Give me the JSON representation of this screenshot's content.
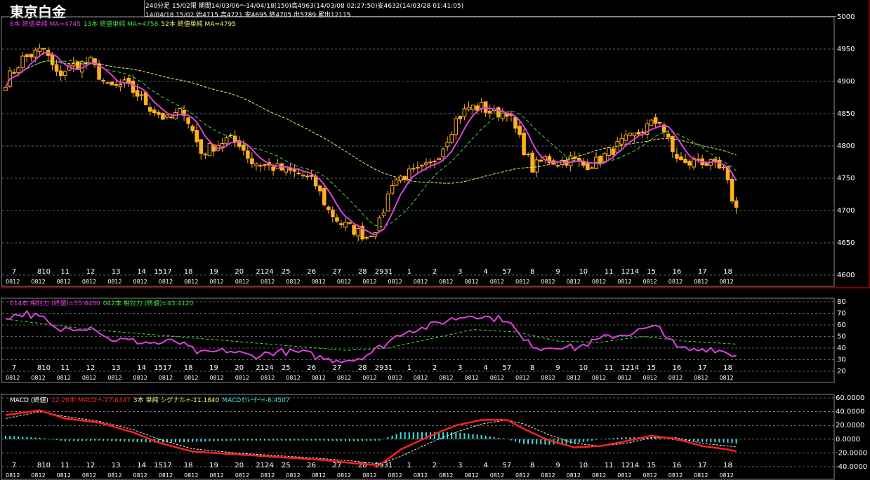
{
  "header": {
    "title": "東京白金",
    "info_line1": "240分足 15/02限 期間14/03/06～14/04/18(150)高4963(14/03/08 02:27:50)安4632(14/03/28 01:41:05)",
    "info_line2": "14/04/18 15/02 始4715 高4721 安4695 終4705 出5789 累出12115"
  },
  "colors": {
    "bg": "#000000",
    "candle": "#ffb020",
    "ma6": "#e040e0",
    "ma13": "#40e040",
    "ma52": "#f0f070",
    "rsi14": "#e040e0",
    "rsi42": "#40e040",
    "macd": "#ff2020",
    "signal": "#f0f0f0",
    "osc": "#40e0e0",
    "grid": "#c0c0c0",
    "red_border": "#ff0000"
  },
  "legends": {
    "price": [
      {
        "text": "6本 終値単純 MA=4745",
        "color": "#e040e0"
      },
      {
        "text": "13本 終値単純 MA=4758",
        "color": "#40e040"
      },
      {
        "text": "52本 終値単純 MA=4795",
        "color": "#f0f070"
      }
    ],
    "rsi": [
      {
        "text": "014本 相対力 (終値)=33.6480",
        "color": "#e040e0"
      },
      {
        "text": "042本 相対力 (終値)=43.4120",
        "color": "#40e040"
      }
    ],
    "macd": [
      {
        "text": "MACD (終値)",
        "color": "#ffffff"
      },
      {
        "text": "12-26本 MACD=-17.6347",
        "color": "#ff2020"
      },
      {
        "text": "3本 単純 シグナル=-11.1840",
        "color": "#f0f070"
      },
      {
        "text": "MACDｵｼﾚｰﾀｰ=-6.4507",
        "color": "#40e0e0"
      }
    ]
  },
  "date_labels": [
    {
      "text": "7",
      "i": 2
    },
    {
      "text": "810",
      "i": 9
    },
    {
      "text": "11",
      "i": 14
    },
    {
      "text": "12",
      "i": 20
    },
    {
      "text": "13",
      "i": 26
    },
    {
      "text": "14",
      "i": 32
    },
    {
      "text": "1517",
      "i": 37
    },
    {
      "text": "18",
      "i": 43
    },
    {
      "text": "19",
      "i": 49
    },
    {
      "text": "20",
      "i": 55
    },
    {
      "text": "2124",
      "i": 61
    },
    {
      "text": "25",
      "i": 66
    },
    {
      "text": "26",
      "i": 72
    },
    {
      "text": "27",
      "i": 78
    },
    {
      "text": "28",
      "i": 84
    },
    {
      "text": "2931",
      "i": 89
    },
    {
      "text": "1",
      "i": 95
    },
    {
      "text": "2",
      "i": 101
    },
    {
      "text": "3",
      "i": 107
    },
    {
      "text": "4",
      "i": 113
    },
    {
      "text": "57",
      "i": 118
    },
    {
      "text": "8",
      "i": 124
    },
    {
      "text": "9",
      "i": 130
    },
    {
      "text": "10",
      "i": 136
    },
    {
      "text": "11",
      "i": 142
    },
    {
      "text": "1214",
      "i": 147
    },
    {
      "text": "15",
      "i": 152
    },
    {
      "text": "16",
      "i": 158
    },
    {
      "text": "17",
      "i": 164
    },
    {
      "text": "18",
      "i": 170
    }
  ],
  "hour_tick_text": "0812",
  "chart_data": [
    {
      "type": "candlestick",
      "name": "price",
      "ylim": [
        4600,
        5000
      ],
      "yticks": [
        5000,
        4950,
        4900,
        4850,
        4800,
        4750,
        4700,
        4650,
        4600
      ],
      "bars": 173,
      "anchors": [
        [
          0,
          4900
        ],
        [
          4,
          4935
        ],
        [
          9,
          4950
        ],
        [
          12,
          4910
        ],
        [
          16,
          4925
        ],
        [
          20,
          4930
        ],
        [
          24,
          4890
        ],
        [
          28,
          4895
        ],
        [
          31,
          4880
        ],
        [
          34,
          4860
        ],
        [
          38,
          4840
        ],
        [
          42,
          4855
        ],
        [
          46,
          4790
        ],
        [
          49,
          4800
        ],
        [
          52,
          4810
        ],
        [
          55,
          4805
        ],
        [
          58,
          4775
        ],
        [
          61,
          4770
        ],
        [
          64,
          4765
        ],
        [
          67,
          4760
        ],
        [
          70,
          4755
        ],
        [
          73,
          4740
        ],
        [
          76,
          4700
        ],
        [
          79,
          4680
        ],
        [
          82,
          4670
        ],
        [
          85,
          4660
        ],
        [
          88,
          4680
        ],
        [
          91,
          4745
        ],
        [
          94,
          4755
        ],
        [
          97,
          4760
        ],
        [
          100,
          4770
        ],
        [
          103,
          4800
        ],
        [
          106,
          4840
        ],
        [
          109,
          4860
        ],
        [
          112,
          4860
        ],
        [
          115,
          4850
        ],
        [
          118,
          4855
        ],
        [
          121,
          4810
        ],
        [
          124,
          4765
        ],
        [
          127,
          4780
        ],
        [
          130,
          4775
        ],
        [
          133,
          4780
        ],
        [
          136,
          4770
        ],
        [
          139,
          4775
        ],
        [
          142,
          4790
        ],
        [
          145,
          4805
        ],
        [
          148,
          4815
        ],
        [
          151,
          4830
        ],
        [
          154,
          4840
        ],
        [
          157,
          4790
        ],
        [
          160,
          4770
        ],
        [
          163,
          4780
        ],
        [
          166,
          4770
        ],
        [
          169,
          4760
        ],
        [
          171,
          4720
        ],
        [
          172,
          4705
        ]
      ],
      "last_bar": {
        "open": 4715,
        "high": 4721,
        "low": 4695,
        "close": 4705
      },
      "period_high": 4963,
      "period_low": 4632,
      "ma6_last": 4745,
      "ma13_last": 4758,
      "ma52_last": 4795
    },
    {
      "type": "line",
      "name": "rsi",
      "ylim": [
        20,
        80
      ],
      "yticks": [
        80,
        70,
        60,
        50,
        40,
        30,
        20
      ],
      "rsi14_anchors": [
        [
          0,
          67
        ],
        [
          5,
          70
        ],
        [
          9,
          65
        ],
        [
          12,
          55
        ],
        [
          16,
          58
        ],
        [
          21,
          58
        ],
        [
          24,
          48
        ],
        [
          30,
          46
        ],
        [
          36,
          44
        ],
        [
          40,
          46
        ],
        [
          46,
          35
        ],
        [
          52,
          38
        ],
        [
          58,
          33
        ],
        [
          64,
          37
        ],
        [
          70,
          36
        ],
        [
          76,
          30
        ],
        [
          82,
          30
        ],
        [
          86,
          36
        ],
        [
          90,
          45
        ],
        [
          94,
          55
        ],
        [
          98,
          57
        ],
        [
          104,
          64
        ],
        [
          110,
          69
        ],
        [
          114,
          66
        ],
        [
          118,
          65
        ],
        [
          122,
          46
        ],
        [
          126,
          40
        ],
        [
          130,
          42
        ],
        [
          134,
          40
        ],
        [
          138,
          45
        ],
        [
          142,
          50
        ],
        [
          146,
          52
        ],
        [
          150,
          56
        ],
        [
          154,
          58
        ],
        [
          158,
          40
        ],
        [
          162,
          38
        ],
        [
          166,
          40
        ],
        [
          170,
          36
        ],
        [
          172,
          33.648
        ]
      ],
      "rsi42_anchors": [
        [
          0,
          65
        ],
        [
          20,
          56
        ],
        [
          40,
          50
        ],
        [
          60,
          44
        ],
        [
          80,
          38
        ],
        [
          90,
          40
        ],
        [
          100,
          48
        ],
        [
          110,
          56
        ],
        [
          120,
          54
        ],
        [
          130,
          46
        ],
        [
          140,
          45
        ],
        [
          150,
          50
        ],
        [
          160,
          46
        ],
        [
          172,
          43.412
        ]
      ]
    },
    {
      "type": "line",
      "name": "macd",
      "ylim": [
        -40,
        60
      ],
      "yticks": [
        60,
        40,
        20,
        0,
        -20,
        -40
      ],
      "ytick_labels": [
        "60.0000",
        "40.0000",
        "20.0000",
        "0.0000",
        "-20.0000",
        "-40.0000"
      ],
      "macd_anchors": [
        [
          0,
          35
        ],
        [
          8,
          42
        ],
        [
          14,
          30
        ],
        [
          22,
          24
        ],
        [
          30,
          10
        ],
        [
          36,
          -5
        ],
        [
          44,
          -18
        ],
        [
          54,
          -22
        ],
        [
          64,
          -26
        ],
        [
          74,
          -30
        ],
        [
          82,
          -35
        ],
        [
          88,
          -38
        ],
        [
          93,
          -15
        ],
        [
          100,
          5
        ],
        [
          106,
          20
        ],
        [
          112,
          28
        ],
        [
          118,
          28
        ],
        [
          122,
          15
        ],
        [
          128,
          -2
        ],
        [
          134,
          -12
        ],
        [
          140,
          -10
        ],
        [
          146,
          -3
        ],
        [
          152,
          5
        ],
        [
          158,
          0
        ],
        [
          164,
          -10
        ],
        [
          170,
          -15
        ],
        [
          172,
          -17.6347
        ]
      ],
      "signal_anchors": [
        [
          0,
          30
        ],
        [
          8,
          40
        ],
        [
          14,
          33
        ],
        [
          22,
          26
        ],
        [
          30,
          14
        ],
        [
          36,
          0
        ],
        [
          44,
          -14
        ],
        [
          54,
          -20
        ],
        [
          64,
          -24
        ],
        [
          74,
          -28
        ],
        [
          82,
          -32
        ],
        [
          88,
          -36
        ],
        [
          93,
          -25
        ],
        [
          100,
          -5
        ],
        [
          106,
          10
        ],
        [
          112,
          22
        ],
        [
          118,
          28
        ],
        [
          122,
          22
        ],
        [
          128,
          6
        ],
        [
          134,
          -6
        ],
        [
          140,
          -10
        ],
        [
          146,
          -6
        ],
        [
          152,
          2
        ],
        [
          158,
          2
        ],
        [
          164,
          -6
        ],
        [
          170,
          -10
        ],
        [
          172,
          -11.184
        ]
      ],
      "macd_last": -17.6347,
      "signal_last": -11.184,
      "osc_last": -6.4507
    }
  ]
}
